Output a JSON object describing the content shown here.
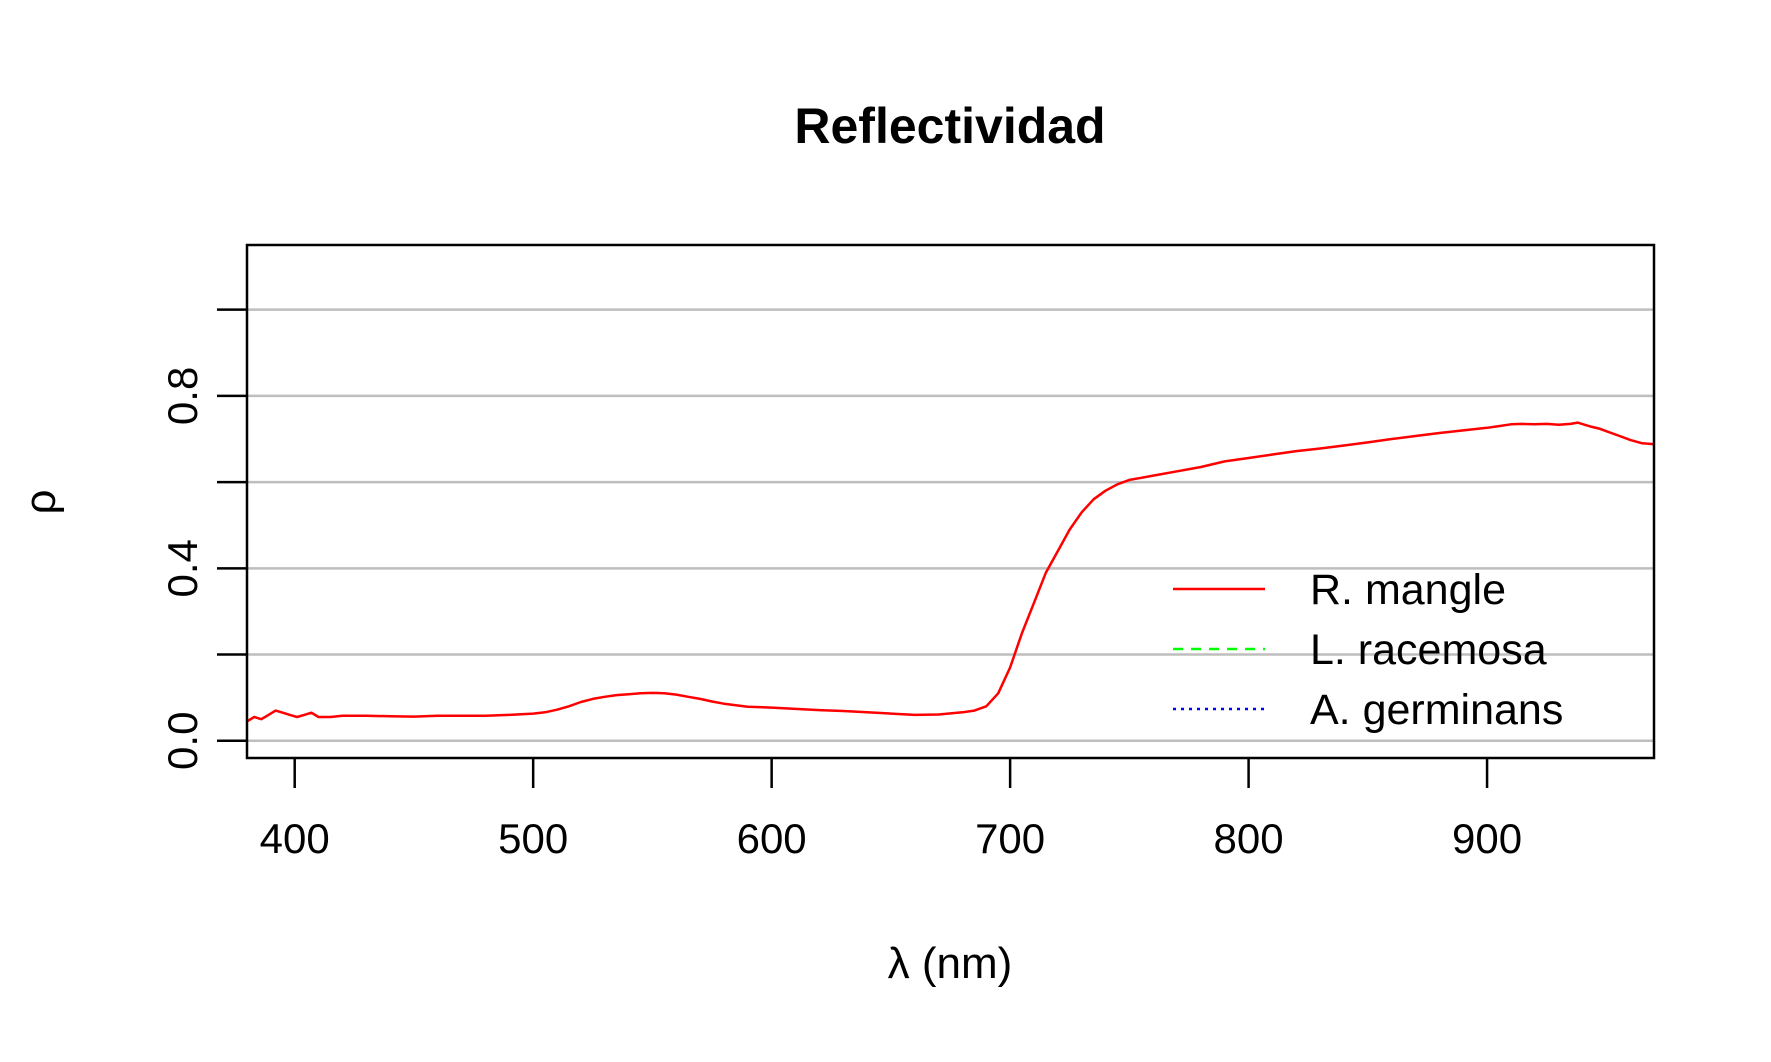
{
  "chart_data": {
    "type": "line",
    "title": "Reflectividad",
    "xlabel": "λ (nm)",
    "ylabel": "ρ",
    "xlim": [
      380,
      970
    ],
    "ylim": [
      -0.04,
      1.15
    ],
    "xticks": [
      "400",
      "500",
      "600",
      "700",
      "800",
      "900"
    ],
    "yticks": [
      "0.0",
      "0.4",
      "0.8"
    ],
    "ytick_marks": [
      0,
      0.2,
      0.4,
      0.6,
      0.8,
      1.0
    ],
    "grid": "horizontal",
    "legend_position": "bottom-right",
    "series": [
      {
        "name": "R. mangle",
        "color": "#ff0000",
        "line": "solid",
        "x": [
          380,
          383,
          386,
          389,
          392,
          395,
          398,
          401,
          404,
          407,
          410,
          415,
          420,
          430,
          440,
          450,
          460,
          470,
          480,
          490,
          500,
          505,
          510,
          515,
          520,
          525,
          530,
          535,
          540,
          545,
          550,
          555,
          560,
          565,
          570,
          575,
          580,
          590,
          600,
          610,
          620,
          630,
          640,
          650,
          660,
          670,
          680,
          685,
          690,
          695,
          700,
          705,
          710,
          715,
          720,
          725,
          730,
          735,
          740,
          745,
          750,
          755,
          760,
          770,
          780,
          790,
          800,
          810,
          820,
          830,
          840,
          850,
          860,
          870,
          880,
          890,
          900,
          905,
          910,
          915,
          920,
          925,
          930,
          935,
          938,
          941,
          944,
          947,
          950,
          955,
          960,
          965,
          970
        ],
        "y": [
          0.045,
          0.055,
          0.05,
          0.06,
          0.07,
          0.065,
          0.06,
          0.055,
          0.06,
          0.065,
          0.055,
          0.055,
          0.058,
          0.058,
          0.057,
          0.056,
          0.058,
          0.058,
          0.058,
          0.06,
          0.063,
          0.066,
          0.072,
          0.08,
          0.09,
          0.097,
          0.102,
          0.106,
          0.108,
          0.11,
          0.111,
          0.11,
          0.107,
          0.102,
          0.097,
          0.091,
          0.086,
          0.079,
          0.077,
          0.074,
          0.071,
          0.069,
          0.066,
          0.063,
          0.06,
          0.061,
          0.066,
          0.07,
          0.08,
          0.11,
          0.17,
          0.25,
          0.32,
          0.39,
          0.44,
          0.49,
          0.53,
          0.56,
          0.58,
          0.595,
          0.605,
          0.61,
          0.615,
          0.625,
          0.635,
          0.648,
          0.656,
          0.664,
          0.672,
          0.678,
          0.685,
          0.692,
          0.7,
          0.707,
          0.714,
          0.72,
          0.726,
          0.73,
          0.734,
          0.735,
          0.734,
          0.735,
          0.733,
          0.735,
          0.738,
          0.733,
          0.728,
          0.724,
          0.718,
          0.708,
          0.698,
          0.69,
          0.688
        ]
      },
      {
        "name": "L. racemosa",
        "color": "#00ff00",
        "line": "dashed",
        "x": [],
        "y": []
      },
      {
        "name": "A. germinans",
        "color": "#0000ff",
        "line": "dotted",
        "x": [],
        "y": []
      }
    ]
  }
}
